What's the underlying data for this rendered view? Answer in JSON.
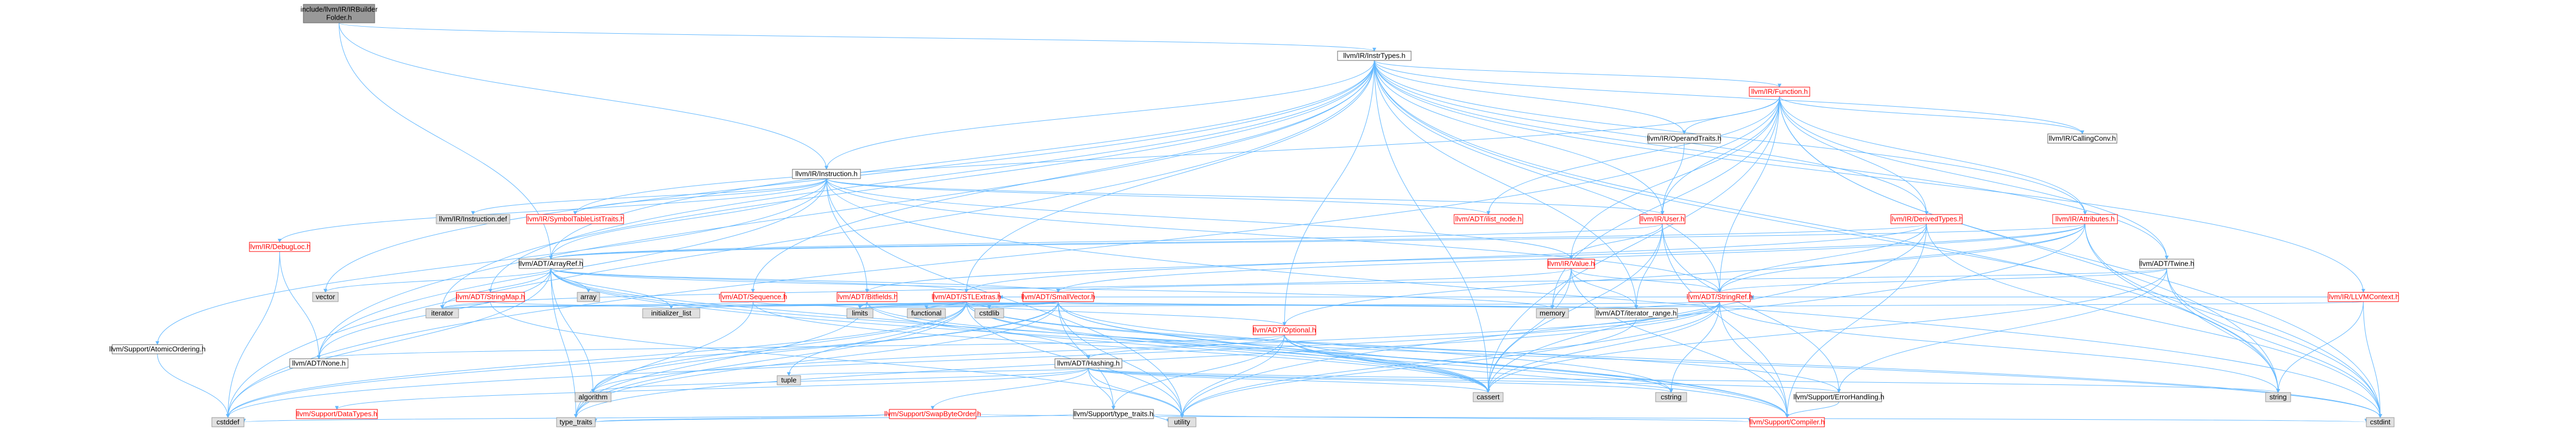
{
  "colors": {
    "edge": "#63b8ff",
    "root_fill": "#999999",
    "root_text": "#000000",
    "normal_fill": "#ffffff",
    "normal_stroke": "#666666",
    "normal_text": "#000000",
    "red_stroke": "#ff0000",
    "red_text": "#ff0000",
    "system_fill": "#e0e0e0",
    "system_stroke": "#999999"
  },
  "nodes": [
    {
      "id": "root",
      "label": "include/llvm/IR/IRBuilderFolder.h",
      "lines": [
        "include/llvm/IR/IRBuilder",
        "Folder.h"
      ],
      "style": "root"
    },
    {
      "id": "insttypes",
      "label": "llvm/IR/InstrTypes.h",
      "style": "normal"
    },
    {
      "id": "instruction",
      "label": "llvm/IR/Instruction.h",
      "style": "normal"
    },
    {
      "id": "function",
      "label": "llvm/IR/Function.h",
      "style": "red"
    },
    {
      "id": "instdef",
      "label": "llvm/IR/Instruction.def",
      "style": "system"
    },
    {
      "id": "symtab",
      "label": "llvm/IR/SymbolTableListTraits.h",
      "style": "red"
    },
    {
      "id": "ilistnode",
      "label": "llvm/ADT/ilist_node.h",
      "style": "red"
    },
    {
      "id": "optraits",
      "label": "llvm/IR/OperandTraits.h",
      "style": "normal"
    },
    {
      "id": "user",
      "label": "llvm/IR/User.h",
      "style": "red"
    },
    {
      "id": "callconv",
      "label": "llvm/IR/CallingConv.h",
      "style": "normal"
    },
    {
      "id": "debugloc",
      "label": "llvm/IR/DebugLoc.h",
      "style": "red"
    },
    {
      "id": "arrayref",
      "label": "llvm/ADT/ArrayRef.h",
      "style": "normal"
    },
    {
      "id": "derived",
      "label": "llvm/IR/DerivedTypes.h",
      "style": "red"
    },
    {
      "id": "attributes",
      "label": "llvm/IR/Attributes.h",
      "style": "red"
    },
    {
      "id": "value",
      "label": "llvm/IR/Value.h",
      "style": "red"
    },
    {
      "id": "twine",
      "label": "llvm/ADT/Twine.h",
      "style": "normal"
    },
    {
      "id": "vector",
      "label": "vector",
      "style": "system"
    },
    {
      "id": "array",
      "label": "array",
      "style": "system"
    },
    {
      "id": "stringmap",
      "label": "llvm/ADT/StringMap.h",
      "style": "red"
    },
    {
      "id": "sequence",
      "label": "llvm/ADT/Sequence.h",
      "style": "red"
    },
    {
      "id": "bitfields",
      "label": "llvm/ADT/Bitfields.h",
      "style": "red"
    },
    {
      "id": "stlextras",
      "label": "llvm/ADT/STLExtras.h",
      "style": "red"
    },
    {
      "id": "smallvector",
      "label": "llvm/ADT/SmallVector.h",
      "style": "red"
    },
    {
      "id": "stringref",
      "label": "llvm/ADT/StringRef.h",
      "style": "red"
    },
    {
      "id": "llvmcontext",
      "label": "llvm/IR/LLVMContext.h",
      "style": "red"
    },
    {
      "id": "iterator",
      "label": "iterator",
      "style": "system"
    },
    {
      "id": "initlist",
      "label": "initializer_list",
      "style": "system"
    },
    {
      "id": "limits",
      "label": "limits",
      "style": "system"
    },
    {
      "id": "functional",
      "label": "functional",
      "style": "system"
    },
    {
      "id": "cstdlib",
      "label": "cstdlib",
      "style": "system"
    },
    {
      "id": "memory",
      "label": "memory",
      "style": "system"
    },
    {
      "id": "iterrange",
      "label": "llvm/ADT/iterator_range.h",
      "style": "normal"
    },
    {
      "id": "optional",
      "label": "llvm/ADT/Optional.h",
      "style": "red"
    },
    {
      "id": "atomicordering",
      "label": "llvm/Support/AtomicOrdering.h",
      "style": "normal"
    },
    {
      "id": "none",
      "label": "llvm/ADT/None.h",
      "style": "normal"
    },
    {
      "id": "hashing",
      "label": "llvm/ADT/Hashing.h",
      "style": "normal"
    },
    {
      "id": "tuple",
      "label": "tuple",
      "style": "system"
    },
    {
      "id": "algorithm",
      "label": "algorithm",
      "style": "system"
    },
    {
      "id": "cassert",
      "label": "cassert",
      "style": "system"
    },
    {
      "id": "cstring",
      "label": "cstring",
      "style": "system"
    },
    {
      "id": "string",
      "label": "string",
      "style": "system"
    },
    {
      "id": "errorhandling",
      "label": "llvm/Support/ErrorHandling.h",
      "style": "normal"
    },
    {
      "id": "datatypes",
      "label": "llvm/Support/DataTypes.h",
      "style": "red"
    },
    {
      "id": "swapbyteorder",
      "label": "llvm/Support/SwapByteOrder.h",
      "style": "red"
    },
    {
      "id": "typetraits",
      "label": "llvm/Support/type_traits.h",
      "style": "normal"
    },
    {
      "id": "cstddef",
      "label": "cstddef",
      "style": "system"
    },
    {
      "id": "typetraitsstd",
      "label": "type_traits",
      "style": "system"
    },
    {
      "id": "utility",
      "label": "utility",
      "style": "system"
    },
    {
      "id": "compiler",
      "label": "llvm/Support/Compiler.h",
      "style": "red"
    },
    {
      "id": "cstdint",
      "label": "cstdint",
      "style": "system"
    }
  ],
  "edges": [
    [
      "root",
      "insttypes"
    ],
    [
      "root",
      "instruction"
    ],
    [
      "root",
      "arrayref"
    ],
    [
      "insttypes",
      "function"
    ],
    [
      "insttypes",
      "instruction"
    ],
    [
      "insttypes",
      "optraits"
    ],
    [
      "insttypes",
      "user"
    ],
    [
      "insttypes",
      "callconv"
    ],
    [
      "insttypes",
      "derived"
    ],
    [
      "insttypes",
      "attributes"
    ],
    [
      "insttypes",
      "twine"
    ],
    [
      "insttypes",
      "llvmcontext"
    ],
    [
      "insttypes",
      "arrayref"
    ],
    [
      "insttypes",
      "sequence"
    ],
    [
      "insttypes",
      "stlextras"
    ],
    [
      "insttypes",
      "stringmap"
    ],
    [
      "insttypes",
      "optional"
    ],
    [
      "insttypes",
      "none"
    ],
    [
      "insttypes",
      "vector"
    ],
    [
      "insttypes",
      "iterator"
    ],
    [
      "insttypes",
      "string"
    ],
    [
      "insttypes",
      "cassert"
    ],
    [
      "insttypes",
      "cstddef"
    ],
    [
      "insttypes",
      "cstdint"
    ],
    [
      "insttypes",
      "stringref"
    ],
    [
      "insttypes",
      "iterrange"
    ],
    [
      "function",
      "symtab"
    ],
    [
      "function",
      "ilistnode"
    ],
    [
      "function",
      "optraits"
    ],
    [
      "function",
      "callconv"
    ],
    [
      "function",
      "derived"
    ],
    [
      "function",
      "attributes"
    ],
    [
      "function",
      "value"
    ],
    [
      "function",
      "user"
    ],
    [
      "function",
      "twine"
    ],
    [
      "function",
      "stringref"
    ],
    [
      "function",
      "cassert"
    ],
    [
      "function",
      "cstddef"
    ],
    [
      "function",
      "cstdint"
    ],
    [
      "function",
      "memory"
    ],
    [
      "function",
      "string"
    ],
    [
      "instruction",
      "instdef"
    ],
    [
      "instruction",
      "symtab"
    ],
    [
      "instruction",
      "ilistnode"
    ],
    [
      "instruction",
      "user"
    ],
    [
      "instruction",
      "debugloc"
    ],
    [
      "instruction",
      "arrayref"
    ],
    [
      "instruction",
      "bitfields"
    ],
    [
      "instruction",
      "stringref"
    ],
    [
      "instruction",
      "value"
    ],
    [
      "instruction",
      "atomicordering"
    ],
    [
      "instruction",
      "cstdint"
    ],
    [
      "instruction",
      "utility"
    ],
    [
      "instruction",
      "none"
    ],
    [
      "user",
      "value"
    ],
    [
      "user",
      "arrayref"
    ],
    [
      "user",
      "iterrange"
    ],
    [
      "user",
      "cassert"
    ],
    [
      "user",
      "compiler"
    ],
    [
      "user",
      "errorhandling"
    ],
    [
      "optraits",
      "user"
    ],
    [
      "derived",
      "arrayref"
    ],
    [
      "derived",
      "stlextras"
    ],
    [
      "derived",
      "stringref"
    ],
    [
      "derived",
      "cassert"
    ],
    [
      "derived",
      "cstdint"
    ],
    [
      "derived",
      "compiler"
    ],
    [
      "attributes",
      "arrayref"
    ],
    [
      "attributes",
      "stringref"
    ],
    [
      "attributes",
      "optional"
    ],
    [
      "attributes",
      "smallvector"
    ],
    [
      "attributes",
      "bitfields"
    ],
    [
      "attributes",
      "cstdint"
    ],
    [
      "attributes",
      "string"
    ],
    [
      "attributes",
      "utility"
    ],
    [
      "value",
      "stringref"
    ],
    [
      "value",
      "iterrange"
    ],
    [
      "value",
      "memory"
    ],
    [
      "value",
      "cassert"
    ],
    [
      "value",
      "iterator"
    ],
    [
      "value",
      "compiler"
    ],
    [
      "twine",
      "smallvector"
    ],
    [
      "twine",
      "stringref"
    ],
    [
      "twine",
      "errorhandling"
    ],
    [
      "twine",
      "cassert"
    ],
    [
      "twine",
      "cstdint"
    ],
    [
      "twine",
      "string"
    ],
    [
      "llvmcontext",
      "stringref"
    ],
    [
      "llvmcontext",
      "cstdint"
    ],
    [
      "llvmcontext",
      "memory"
    ],
    [
      "llvmcontext",
      "string"
    ],
    [
      "debugloc",
      "none"
    ],
    [
      "debugloc",
      "cstddef"
    ],
    [
      "arrayref",
      "hashing"
    ],
    [
      "arrayref",
      "none"
    ],
    [
      "arrayref",
      "smallvector"
    ],
    [
      "arrayref",
      "stlextras"
    ],
    [
      "arrayref",
      "compiler"
    ],
    [
      "arrayref",
      "algorithm"
    ],
    [
      "arrayref",
      "array"
    ],
    [
      "arrayref",
      "cassert"
    ],
    [
      "arrayref",
      "cstddef"
    ],
    [
      "arrayref",
      "initlist"
    ],
    [
      "arrayref",
      "iterator"
    ],
    [
      "arrayref",
      "memory"
    ],
    [
      "arrayref",
      "typetraitsstd"
    ],
    [
      "arrayref",
      "vector"
    ],
    [
      "stringmap",
      "iterator"
    ],
    [
      "stringmap",
      "initlist"
    ],
    [
      "stringmap",
      "utility"
    ],
    [
      "sequence",
      "iterator"
    ],
    [
      "sequence",
      "limits"
    ],
    [
      "sequence",
      "typetraitsstd"
    ],
    [
      "sequence",
      "cassert"
    ],
    [
      "bitfields",
      "cassert"
    ],
    [
      "bitfields",
      "cstdint"
    ],
    [
      "bitfields",
      "limits"
    ],
    [
      "bitfields",
      "typetraitsstd"
    ],
    [
      "stlextras",
      "optional"
    ],
    [
      "stlextras",
      "iterrange"
    ],
    [
      "stlextras",
      "algorithm"
    ],
    [
      "stlextras",
      "cassert"
    ],
    [
      "stlextras",
      "cstddef"
    ],
    [
      "stlextras",
      "cstdint"
    ],
    [
      "stlextras",
      "cstdlib"
    ],
    [
      "stlextras",
      "functional"
    ],
    [
      "stlextras",
      "initlist"
    ],
    [
      "stlextras",
      "iterator"
    ],
    [
      "stlextras",
      "limits"
    ],
    [
      "stlextras",
      "memory"
    ],
    [
      "stlextras",
      "tuple"
    ],
    [
      "stlextras",
      "typetraitsstd"
    ],
    [
      "stlextras",
      "utility"
    ],
    [
      "stlextras",
      "errorhandling"
    ],
    [
      "stlextras",
      "compiler"
    ],
    [
      "smallvector",
      "iterrange"
    ],
    [
      "smallvector",
      "algorithm"
    ],
    [
      "smallvector",
      "cassert"
    ],
    [
      "smallvector",
      "cstddef"
    ],
    [
      "smallvector",
      "cstdlib"
    ],
    [
      "smallvector",
      "cstring"
    ],
    [
      "smallvector",
      "functional"
    ],
    [
      "smallvector",
      "initlist"
    ],
    [
      "smallvector",
      "iterator"
    ],
    [
      "smallvector",
      "limits"
    ],
    [
      "smallvector",
      "memory"
    ],
    [
      "smallvector",
      "typetraitsstd"
    ],
    [
      "smallvector",
      "utility"
    ],
    [
      "smallvector",
      "compiler"
    ],
    [
      "smallvector",
      "typetraits"
    ],
    [
      "stringref",
      "stlextras"
    ],
    [
      "stringref",
      "iterrange"
    ],
    [
      "stringref",
      "compiler"
    ],
    [
      "stringref",
      "algorithm"
    ],
    [
      "stringref",
      "cassert"
    ],
    [
      "stringref",
      "cstddef"
    ],
    [
      "stringref",
      "cstring"
    ],
    [
      "stringref",
      "limits"
    ],
    [
      "stringref",
      "string"
    ],
    [
      "stringref",
      "typetraitsstd"
    ],
    [
      "stringref",
      "utility"
    ],
    [
      "optional",
      "none"
    ],
    [
      "optional",
      "hashing"
    ],
    [
      "optional",
      "compiler"
    ],
    [
      "optional",
      "typetraits"
    ],
    [
      "optional",
      "cassert"
    ],
    [
      "optional",
      "cstring"
    ],
    [
      "optional",
      "new"
    ],
    [
      "optional",
      "utility"
    ],
    [
      "hashing",
      "errorhandling"
    ],
    [
      "hashing",
      "datatypes"
    ],
    [
      "hashing",
      "swapbyteorder"
    ],
    [
      "hashing",
      "typetraits"
    ],
    [
      "hashing",
      "algorithm"
    ],
    [
      "hashing",
      "cassert"
    ],
    [
      "hashing",
      "cstring"
    ],
    [
      "hashing",
      "string"
    ],
    [
      "hashing",
      "tuple"
    ],
    [
      "hashing",
      "utility"
    ],
    [
      "atomicordering",
      "cstddef"
    ],
    [
      "swapbyteorder",
      "cstddef"
    ],
    [
      "swapbyteorder",
      "cstdint"
    ],
    [
      "swapbyteorder",
      "typetraitsstd"
    ],
    [
      "typetraits",
      "utility"
    ],
    [
      "typetraits",
      "typetraitsstd"
    ],
    [
      "typetraits",
      "compiler"
    ],
    [
      "errorhandling",
      "compiler"
    ],
    [
      "iterrange",
      "utility"
    ]
  ]
}
